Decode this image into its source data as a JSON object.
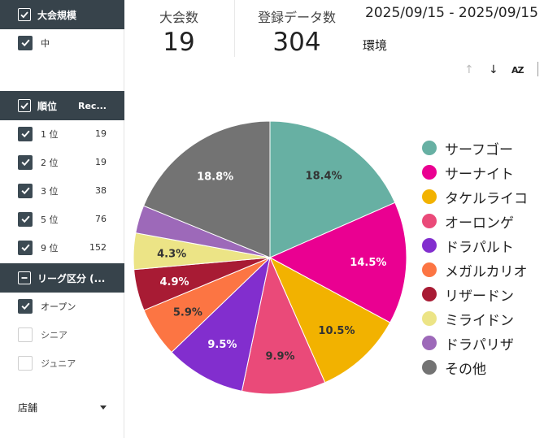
{
  "filters": {
    "size": {
      "title": "大会規模",
      "options": [
        {
          "label": "中",
          "checked": true
        }
      ]
    },
    "rank": {
      "title": "順位",
      "column": "Rec...",
      "options": [
        {
          "label": "1 位",
          "count": "19",
          "checked": true
        },
        {
          "label": "2 位",
          "count": "19",
          "checked": true
        },
        {
          "label": "3 位",
          "count": "38",
          "checked": true
        },
        {
          "label": "5 位",
          "count": "76",
          "checked": true
        },
        {
          "label": "9 位",
          "count": "152",
          "checked": true
        }
      ]
    },
    "league": {
      "title": "リーグ区分 (...",
      "options": [
        {
          "label": "オープン",
          "checked": true
        },
        {
          "label": "シニア",
          "checked": false
        },
        {
          "label": "ジュニア",
          "checked": false
        }
      ]
    },
    "store": {
      "label": "店舗",
      "icon": "caret-down-icon"
    }
  },
  "kpis": {
    "tournaments": {
      "label": "大会数",
      "value": "19"
    },
    "records": {
      "label": "登録データ数",
      "value": "304"
    }
  },
  "date_range": "2025/09/15 - 2025/09/15",
  "chart_title": "環境",
  "toolbar": {
    "icons": [
      "arrow-up-icon",
      "arrow-down-icon",
      "sort-az-icon"
    ],
    "sort_label": "AZ"
  },
  "chart_data": {
    "type": "pie",
    "title": "環境",
    "labels": [
      "サーフゴー",
      "サーナイト",
      "タケルライコ",
      "オーロンゲ",
      "ドラパルト",
      "メガルカリオ",
      "リザードン",
      "ミライドン",
      "ドラパリザ",
      "その他"
    ],
    "values": [
      18.4,
      14.5,
      10.5,
      9.9,
      9.5,
      5.9,
      4.9,
      4.3,
      3.3,
      18.8
    ],
    "slice_labels": [
      "18.4%",
      "14.5%",
      "10.5%",
      "9.9%",
      "9.5%",
      "5.9%",
      "4.9%",
      "4.3%",
      "",
      "18.8%"
    ],
    "colors": [
      "#67b0a3",
      "#ea0091",
      "#f2b200",
      "#ea4a79",
      "#822ece",
      "#fc7543",
      "#a81b34",
      "#ece486",
      "#9d69b9",
      "#737373"
    ],
    "label_colors": [
      "#333333",
      "#ffffff",
      "#333333",
      "#333333",
      "#ffffff",
      "#333333",
      "#ffffff",
      "#333333",
      "#ffffff",
      "#ffffff"
    ],
    "legend_placement": "right"
  }
}
